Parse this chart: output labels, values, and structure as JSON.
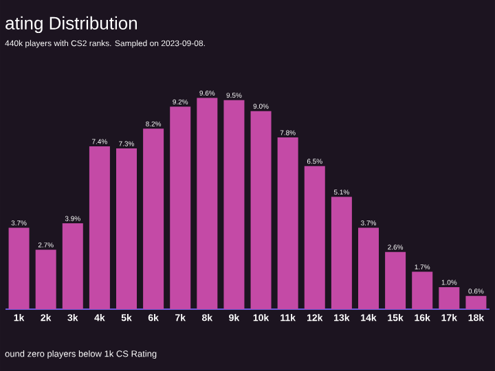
{
  "chart_data": {
    "type": "bar",
    "title": "ating Distribution",
    "subtitle": "440k players with CS2 ranks. Sampled on 2023-09-08.",
    "annotations": [
      "ound zero players below 1k CS Rating"
    ],
    "categories": [
      "1k",
      "2k",
      "3k",
      "4k",
      "5k",
      "6k",
      "7k",
      "8k",
      "9k",
      "10k",
      "11k",
      "12k",
      "13k",
      "14k",
      "15k",
      "16k",
      "17k",
      "18k"
    ],
    "values": [
      3.7,
      2.7,
      3.9,
      7.4,
      7.3,
      8.2,
      9.2,
      9.6,
      9.5,
      9.0,
      7.8,
      6.5,
      5.1,
      3.7,
      2.6,
      1.7,
      1.0,
      0.6
    ],
    "value_labels": [
      "3.7%",
      "2.7%",
      "3.9%",
      "7.4%",
      "7.3%",
      "8.2%",
      "9.2%",
      "9.6%",
      "9.5%",
      "9.0%",
      "7.8%",
      "6.5%",
      "5.1%",
      "3.7%",
      "2.6%",
      "1.7%",
      "1.0%",
      "0.6%"
    ],
    "color": "#c44aa6",
    "tick_labels": "x"
  }
}
